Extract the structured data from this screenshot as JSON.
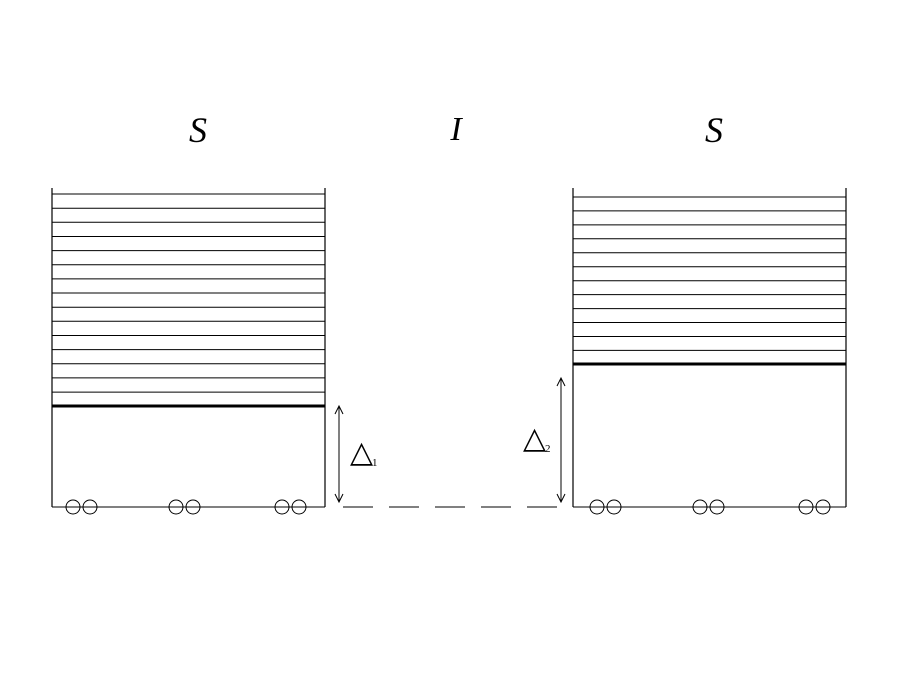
{
  "labels": {
    "left_letter": "S",
    "middle_letter": "I",
    "right_letter": "S"
  },
  "left_compartment": {
    "displacement_symbol": "△",
    "displacement_subscript": "1"
  },
  "right_compartment": {
    "displacement_symbol": "△",
    "displacement_subscript": "2"
  },
  "colors": {
    "ink": "#000000",
    "background": "#ffffff"
  }
}
